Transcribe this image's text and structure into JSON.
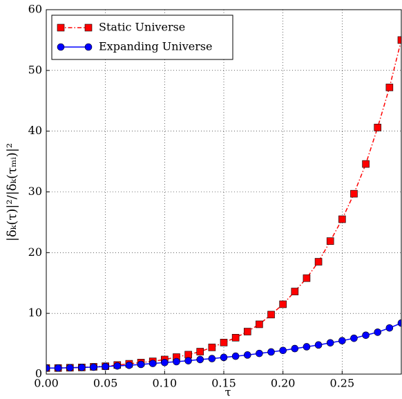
{
  "chart_data": {
    "type": "line",
    "xlabel": "τ",
    "ylabel": "|δₖ(τ)|²/|δₖ(τₘᵢ)|²",
    "x": [
      0.0,
      0.01,
      0.02,
      0.03,
      0.04,
      0.05,
      0.06,
      0.07,
      0.08,
      0.09,
      0.1,
      0.11,
      0.12,
      0.13,
      0.14,
      0.15,
      0.16,
      0.17,
      0.18,
      0.19,
      0.2,
      0.21,
      0.22,
      0.23,
      0.24,
      0.25,
      0.26,
      0.27,
      0.28,
      0.29,
      0.3
    ],
    "series": [
      {
        "name": "Static Universe",
        "color": "#ff0000",
        "marker": "square",
        "linestyle": "dashdot",
        "values": [
          1.0,
          1.0,
          1.05,
          1.1,
          1.2,
          1.3,
          1.5,
          1.7,
          1.9,
          2.1,
          2.4,
          2.8,
          3.2,
          3.7,
          4.4,
          5.2,
          6.0,
          7.0,
          8.2,
          9.8,
          11.5,
          13.6,
          15.8,
          18.5,
          21.9,
          25.5,
          29.7,
          34.6,
          40.6,
          47.2,
          55.0
        ]
      },
      {
        "name": "Expanding Universe",
        "color": "#0000ff",
        "marker": "circle",
        "linestyle": "solid",
        "values": [
          1.0,
          1.0,
          1.05,
          1.1,
          1.15,
          1.25,
          1.35,
          1.45,
          1.6,
          1.75,
          1.9,
          2.05,
          2.2,
          2.4,
          2.55,
          2.75,
          2.95,
          3.15,
          3.4,
          3.65,
          3.9,
          4.2,
          4.5,
          4.8,
          5.15,
          5.5,
          5.9,
          6.4,
          6.9,
          7.6,
          8.4
        ]
      }
    ],
    "xlim": [
      0,
      0.3
    ],
    "xticks": [
      {
        "value": 0,
        "label": "0.00"
      },
      {
        "value": 0.05,
        "label": "0.05"
      },
      {
        "value": 0.1,
        "label": "0.10"
      },
      {
        "value": 0.15,
        "label": "0.15"
      },
      {
        "value": 0.2,
        "label": "0.20"
      },
      {
        "value": 0.25,
        "label": "0.25"
      }
    ],
    "ylim": [
      0,
      60
    ],
    "yticks": [
      0,
      10,
      20,
      30,
      40,
      50,
      60
    ],
    "grid": true,
    "legend": "upper left"
  }
}
